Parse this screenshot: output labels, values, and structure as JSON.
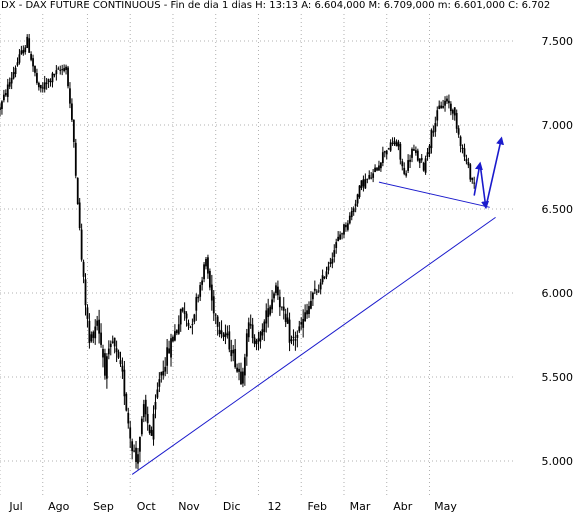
{
  "header": {
    "text": "DX - DAX FUTURE CONTINUOUS - Fin de dia 1 dias  H: 13:13  A: 6.604,000  M: 6.709,000  m: 6.601,000  C: 6.702"
  },
  "chart_data": {
    "type": "candlestick",
    "title": "DX - DAX FUTURE CONTINUOUS - Fin de dia 1 dias",
    "header_values": {
      "H": "13:13",
      "A": "6.604,000",
      "M": "6.709,000",
      "m": "6.601,000",
      "C": "6.702"
    },
    "xlabel": "",
    "ylabel": "",
    "x_tick_labels": [
      "Jul",
      "Ago",
      "Sep",
      "Oct",
      "Nov",
      "Dic",
      "12",
      "Feb",
      "Mar",
      "Abr",
      "May"
    ],
    "y_tick_labels": [
      "7.500",
      "7.000",
      "6.500",
      "6.000",
      "5.500",
      "5.000"
    ],
    "ylim": [
      4900,
      7640
    ],
    "grid": true,
    "grid_style": "dotted",
    "colors": {
      "bars": "#000000",
      "lines": "#1a1acc",
      "grid": "#b0b0b0"
    },
    "price_path": [
      {
        "d": 0,
        "v": 7100
      },
      {
        "d": 8,
        "v": 7350
      },
      {
        "d": 14,
        "v": 7500
      },
      {
        "d": 20,
        "v": 7200
      },
      {
        "d": 28,
        "v": 7300
      },
      {
        "d": 34,
        "v": 7350
      },
      {
        "d": 38,
        "v": 6900
      },
      {
        "d": 42,
        "v": 6200
      },
      {
        "d": 46,
        "v": 5700
      },
      {
        "d": 50,
        "v": 5850
      },
      {
        "d": 54,
        "v": 5550
      },
      {
        "d": 58,
        "v": 5700
      },
      {
        "d": 63,
        "v": 5500
      },
      {
        "d": 67,
        "v": 5150
      },
      {
        "d": 70,
        "v": 5000
      },
      {
        "d": 74,
        "v": 5300
      },
      {
        "d": 78,
        "v": 5150
      },
      {
        "d": 82,
        "v": 5500
      },
      {
        "d": 88,
        "v": 5700
      },
      {
        "d": 94,
        "v": 5900
      },
      {
        "d": 98,
        "v": 5800
      },
      {
        "d": 102,
        "v": 6000
      },
      {
        "d": 106,
        "v": 6200
      },
      {
        "d": 109,
        "v": 5950
      },
      {
        "d": 113,
        "v": 5800
      },
      {
        "d": 118,
        "v": 5700
      },
      {
        "d": 124,
        "v": 5500
      },
      {
        "d": 128,
        "v": 5800
      },
      {
        "d": 133,
        "v": 5700
      },
      {
        "d": 138,
        "v": 5900
      },
      {
        "d": 142,
        "v": 6050
      },
      {
        "d": 146,
        "v": 5850
      },
      {
        "d": 150,
        "v": 5700
      },
      {
        "d": 155,
        "v": 5800
      },
      {
        "d": 160,
        "v": 5950
      },
      {
        "d": 165,
        "v": 6050
      },
      {
        "d": 170,
        "v": 6200
      },
      {
        "d": 175,
        "v": 6350
      },
      {
        "d": 180,
        "v": 6450
      },
      {
        "d": 186,
        "v": 6650
      },
      {
        "d": 192,
        "v": 6700
      },
      {
        "d": 198,
        "v": 6850
      },
      {
        "d": 204,
        "v": 6900
      },
      {
        "d": 208,
        "v": 6700
      },
      {
        "d": 212,
        "v": 6850
      },
      {
        "d": 218,
        "v": 6750
      },
      {
        "d": 222,
        "v": 6950
      },
      {
        "d": 226,
        "v": 7100
      },
      {
        "d": 230,
        "v": 7150
      },
      {
        "d": 234,
        "v": 7050
      },
      {
        "d": 238,
        "v": 6850
      },
      {
        "d": 242,
        "v": 6700
      },
      {
        "d": 244,
        "v": 6650
      }
    ],
    "trendlines": [
      {
        "name": "support",
        "from": {
          "d": 68,
          "v": 4920
        },
        "to": {
          "d": 255,
          "v": 6450
        }
      },
      {
        "name": "neckline",
        "from": {
          "d": 195,
          "v": 6660
        },
        "to": {
          "d": 252,
          "v": 6510
        }
      }
    ],
    "projection_arrows": [
      {
        "from": {
          "d": 244,
          "v": 6580
        },
        "to": {
          "d": 247,
          "v": 6770
        }
      },
      {
        "from": {
          "d": 247,
          "v": 6770
        },
        "to": {
          "d": 250,
          "v": 6510
        }
      },
      {
        "from": {
          "d": 250,
          "v": 6510
        },
        "to": {
          "d": 258,
          "v": 6920
        }
      }
    ]
  }
}
